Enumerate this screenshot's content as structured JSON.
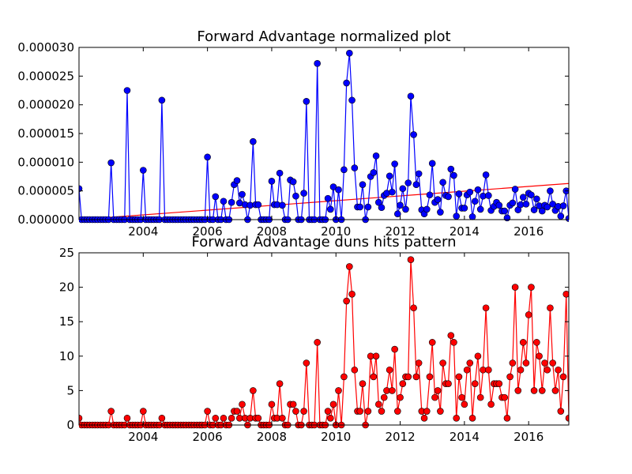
{
  "chart_data": [
    {
      "type": "line",
      "title": "Forward Advantage normalized plot",
      "x": [
        2002,
        2002.08,
        2002.17,
        2002.25,
        2002.33,
        2002.42,
        2002.5,
        2002.58,
        2002.67,
        2002.75,
        2002.83,
        2002.92,
        2003,
        2003.08,
        2003.17,
        2003.25,
        2003.33,
        2003.42,
        2003.5,
        2003.58,
        2003.67,
        2003.75,
        2003.83,
        2003.92,
        2004,
        2004.08,
        2004.17,
        2004.25,
        2004.33,
        2004.42,
        2004.5,
        2004.58,
        2004.67,
        2004.75,
        2004.83,
        2004.92,
        2005,
        2005.08,
        2005.17,
        2005.25,
        2005.33,
        2005.42,
        2005.5,
        2005.58,
        2005.67,
        2005.75,
        2005.83,
        2005.92,
        2006,
        2006.08,
        2006.17,
        2006.25,
        2006.33,
        2006.42,
        2006.5,
        2006.58,
        2006.67,
        2006.75,
        2006.83,
        2006.92,
        2007,
        2007.08,
        2007.17,
        2007.25,
        2007.33,
        2007.42,
        2007.5,
        2007.58,
        2007.67,
        2007.75,
        2007.83,
        2007.92,
        2008,
        2008.08,
        2008.17,
        2008.25,
        2008.33,
        2008.42,
        2008.5,
        2008.58,
        2008.67,
        2008.75,
        2008.83,
        2008.92,
        2009,
        2009.08,
        2009.17,
        2009.25,
        2009.33,
        2009.42,
        2009.5,
        2009.58,
        2009.67,
        2009.75,
        2009.83,
        2009.92,
        2010,
        2010.08,
        2010.17,
        2010.25,
        2010.33,
        2010.42,
        2010.5,
        2010.58,
        2010.67,
        2010.75,
        2010.83,
        2010.92,
        2011,
        2011.08,
        2011.17,
        2011.25,
        2011.33,
        2011.42,
        2011.5,
        2011.58,
        2011.67,
        2011.75,
        2011.83,
        2011.92,
        2012,
        2012.08,
        2012.17,
        2012.25,
        2012.33,
        2012.42,
        2012.5,
        2012.58,
        2012.67,
        2012.75,
        2012.83,
        2012.92,
        2013,
        2013.08,
        2013.17,
        2013.25,
        2013.33,
        2013.42,
        2013.5,
        2013.58,
        2013.67,
        2013.75,
        2013.83,
        2013.92,
        2014,
        2014.08,
        2014.17,
        2014.25,
        2014.33,
        2014.42,
        2014.5,
        2014.58,
        2014.67,
        2014.75,
        2014.83,
        2014.92,
        2015,
        2015.08,
        2015.17,
        2015.25,
        2015.33,
        2015.42,
        2015.5,
        2015.58,
        2015.67,
        2015.75,
        2015.83,
        2015.92,
        2016,
        2016.08,
        2016.17,
        2016.25,
        2016.33,
        2016.42,
        2016.5,
        2016.58,
        2016.67,
        2016.75,
        2016.83,
        2016.92,
        2017,
        2017.08,
        2017.17,
        2017.25
      ],
      "series": [
        {
          "color": "#0000ff",
          "values": [
            5.4e-06,
            0,
            0,
            0,
            0,
            0,
            0,
            0,
            0,
            0,
            0,
            0,
            9.9e-06,
            0,
            0,
            0,
            0,
            0,
            2.25e-05,
            0,
            0,
            0,
            0,
            0,
            8.6e-06,
            0,
            0,
            0,
            0,
            0,
            0,
            2.08e-05,
            0,
            0,
            0,
            0,
            0,
            0,
            0,
            0,
            0,
            0,
            0,
            0,
            0,
            0,
            0,
            0,
            1.09e-05,
            0,
            0,
            4e-06,
            0,
            0,
            3.2e-06,
            0,
            0,
            3e-06,
            6.1e-06,
            6.8e-06,
            2.9e-06,
            4.4e-06,
            2.6e-06,
            0,
            2.5e-06,
            1.36e-05,
            2.6e-06,
            2.6e-06,
            0,
            0,
            0,
            0,
            6.7e-06,
            2.6e-06,
            2.6e-06,
            8.1e-06,
            2.5e-06,
            0,
            0,
            6.9e-06,
            6.6e-06,
            4.1e-06,
            0,
            0,
            4.6e-06,
            2.06e-05,
            0,
            0,
            0,
            2.72e-05,
            0,
            0,
            0,
            3.7e-06,
            1.8e-06,
            5.7e-06,
            0,
            5.2e-06,
            0,
            8.7e-06,
            2.38e-05,
            2.9e-05,
            2.08e-05,
            9e-06,
            2.2e-06,
            2.2e-06,
            6.1e-06,
            0,
            2.2e-06,
            7.5e-06,
            8.2e-06,
            1.11e-05,
            3e-06,
            2.1e-06,
            4.2e-06,
            4.6e-06,
            7.6e-06,
            4.8e-06,
            9.7e-06,
            1e-06,
            2.5e-06,
            5.4e-06,
            1.8e-06,
            6.4e-06,
            2.15e-05,
            1.48e-05,
            6.1e-06,
            8e-06,
            1.7e-06,
            1e-06,
            1.8e-06,
            4.3e-06,
            9.8e-06,
            3e-06,
            3.5e-06,
            1.3e-06,
            6.5e-06,
            4.2e-06,
            4e-06,
            8.8e-06,
            7.7e-06,
            6e-07,
            4.5e-06,
            2e-06,
            2e-06,
            4.3e-06,
            4.8e-06,
            5e-07,
            3.2e-06,
            5.2e-06,
            1.8e-06,
            4.1e-06,
            7.8e-06,
            4.2e-06,
            1.6e-06,
            2.3e-06,
            3e-06,
            2.5e-06,
            1.5e-06,
            1.5e-06,
            3e-07,
            2.5e-06,
            2.9e-06,
            5.3e-06,
            1.7e-06,
            2.6e-06,
            3.9e-06,
            2.7e-06,
            4.6e-06,
            4.3e-06,
            1.7e-06,
            3.6e-06,
            2.4e-06,
            1.5e-06,
            2.5e-06,
            2.2e-06,
            5e-06,
            2.7e-06,
            1.6e-06,
            2.3e-06,
            6e-07,
            2.4e-06,
            5e-06,
            2e-07
          ]
        }
      ],
      "trend": {
        "x": [
          2002,
          2017.25
        ],
        "values": [
          0,
          6.3e-06
        ],
        "color": "#ff0000"
      },
      "xlim": [
        2002,
        2017.25
      ],
      "xticks": [
        2004,
        2006,
        2008,
        2010,
        2012,
        2014,
        2016
      ],
      "ylim": [
        0,
        3e-05
      ],
      "yticks": [
        {
          "value": 0,
          "label": "0.000000"
        },
        {
          "value": 5e-06,
          "label": "0.000005"
        },
        {
          "value": 1e-05,
          "label": "0.000010"
        },
        {
          "value": 1.5e-05,
          "label": "0.000015"
        },
        {
          "value": 2e-05,
          "label": "0.000020"
        },
        {
          "value": 2.5e-05,
          "label": "0.000025"
        },
        {
          "value": 3e-05,
          "label": "0.000030"
        }
      ]
    },
    {
      "type": "line",
      "title": "Forward Advantage duns hits pattern",
      "x": [
        2002,
        2002.08,
        2002.17,
        2002.25,
        2002.33,
        2002.42,
        2002.5,
        2002.58,
        2002.67,
        2002.75,
        2002.83,
        2002.92,
        2003,
        2003.08,
        2003.17,
        2003.25,
        2003.33,
        2003.42,
        2003.5,
        2003.58,
        2003.67,
        2003.75,
        2003.83,
        2003.92,
        2004,
        2004.08,
        2004.17,
        2004.25,
        2004.33,
        2004.42,
        2004.5,
        2004.58,
        2004.67,
        2004.75,
        2004.83,
        2004.92,
        2005,
        2005.08,
        2005.17,
        2005.25,
        2005.33,
        2005.42,
        2005.5,
        2005.58,
        2005.67,
        2005.75,
        2005.83,
        2005.92,
        2006,
        2006.08,
        2006.17,
        2006.25,
        2006.33,
        2006.42,
        2006.5,
        2006.58,
        2006.67,
        2006.75,
        2006.83,
        2006.92,
        2007,
        2007.08,
        2007.17,
        2007.25,
        2007.33,
        2007.42,
        2007.5,
        2007.58,
        2007.67,
        2007.75,
        2007.83,
        2007.92,
        2008,
        2008.08,
        2008.17,
        2008.25,
        2008.33,
        2008.42,
        2008.5,
        2008.58,
        2008.67,
        2008.75,
        2008.83,
        2008.92,
        2009,
        2009.08,
        2009.17,
        2009.25,
        2009.33,
        2009.42,
        2009.5,
        2009.58,
        2009.67,
        2009.75,
        2009.83,
        2009.92,
        2010,
        2010.08,
        2010.17,
        2010.25,
        2010.33,
        2010.42,
        2010.5,
        2010.58,
        2010.67,
        2010.75,
        2010.83,
        2010.92,
        2011,
        2011.08,
        2011.17,
        2011.25,
        2011.33,
        2011.42,
        2011.5,
        2011.58,
        2011.67,
        2011.75,
        2011.83,
        2011.92,
        2012,
        2012.08,
        2012.17,
        2012.25,
        2012.33,
        2012.42,
        2012.5,
        2012.58,
        2012.67,
        2012.75,
        2012.83,
        2012.92,
        2013,
        2013.08,
        2013.17,
        2013.25,
        2013.33,
        2013.42,
        2013.5,
        2013.58,
        2013.67,
        2013.75,
        2013.83,
        2013.92,
        2014,
        2014.08,
        2014.17,
        2014.25,
        2014.33,
        2014.42,
        2014.5,
        2014.58,
        2014.67,
        2014.75,
        2014.83,
        2014.92,
        2015,
        2015.08,
        2015.17,
        2015.25,
        2015.33,
        2015.42,
        2015.5,
        2015.58,
        2015.67,
        2015.75,
        2015.83,
        2015.92,
        2016,
        2016.08,
        2016.17,
        2016.25,
        2016.33,
        2016.42,
        2016.5,
        2016.58,
        2016.67,
        2016.75,
        2016.83,
        2016.92,
        2017,
        2017.08,
        2017.17,
        2017.25
      ],
      "series": [
        {
          "color": "#ff0000",
          "values": [
            1,
            0,
            0,
            0,
            0,
            0,
            0,
            0,
            0,
            0,
            0,
            0,
            2,
            0,
            0,
            0,
            0,
            0,
            1,
            0,
            0,
            0,
            0,
            0,
            2,
            0,
            0,
            0,
            0,
            0,
            0,
            1,
            0,
            0,
            0,
            0,
            0,
            0,
            0,
            0,
            0,
            0,
            0,
            0,
            0,
            0,
            0,
            0,
            2,
            0,
            0,
            1,
            0,
            0,
            1,
            0,
            0,
            1,
            2,
            2,
            1,
            3,
            1,
            0,
            1,
            5,
            1,
            1,
            0,
            0,
            0,
            0,
            3,
            1,
            1,
            6,
            1,
            0,
            0,
            3,
            3,
            2,
            0,
            0,
            2,
            9,
            0,
            0,
            0,
            12,
            0,
            0,
            0,
            2,
            1,
            3,
            0,
            5,
            0,
            7,
            18,
            23,
            19,
            8,
            2,
            2,
            6,
            0,
            2,
            10,
            7,
            10,
            3,
            2,
            4,
            5,
            8,
            5,
            11,
            2,
            4,
            6,
            7,
            7,
            24,
            17,
            7,
            9,
            2,
            1,
            2,
            7,
            12,
            4,
            5,
            2,
            9,
            6,
            6,
            13,
            12,
            1,
            7,
            4,
            3,
            8,
            9,
            1,
            6,
            10,
            4,
            8,
            17,
            8,
            3,
            6,
            6,
            6,
            4,
            4,
            1,
            7,
            9,
            20,
            5,
            8,
            12,
            9,
            16,
            20,
            5,
            12,
            10,
            5,
            9,
            8,
            17,
            9,
            5,
            8,
            2,
            7,
            19,
            1
          ]
        }
      ],
      "xlim": [
        2002,
        2017.25
      ],
      "xticks": [
        2004,
        2006,
        2008,
        2010,
        2012,
        2014,
        2016
      ],
      "ylim": [
        0,
        25
      ],
      "yticks": [
        0,
        5,
        10,
        15,
        20,
        25
      ]
    }
  ]
}
